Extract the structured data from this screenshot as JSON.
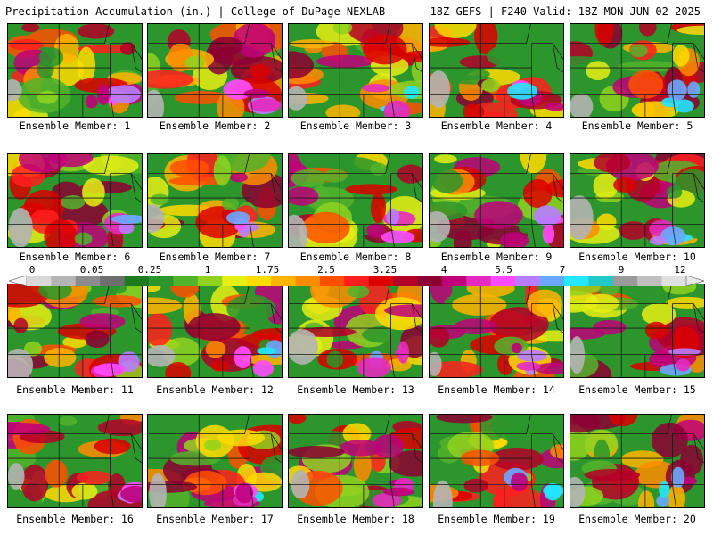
{
  "header": {
    "title": "Precipitation Accumulation (in.) | College of DuPage NEXLAB",
    "valid": "18Z GEFS | F240 Valid: 18Z MON JUN 02 2025"
  },
  "colors": {
    "levels": [
      "#d8d8d8",
      "#b4b4b4",
      "#8c8c8c",
      "#6e6e6e",
      "#1d7a1d",
      "#2c962c",
      "#52b32c",
      "#8fd21e",
      "#e6ef14",
      "#ffdc00",
      "#ffb400",
      "#ff8c00",
      "#ff5000",
      "#ff1e1e",
      "#dc0000",
      "#b40028",
      "#8c0032",
      "#c0007a",
      "#e62abf",
      "#ff4bff",
      "#b87cff",
      "#6aa8ff",
      "#24e6ff",
      "#20c8c8",
      "#9a9a9a",
      "#bfbfbf",
      "#e0e0e0"
    ]
  },
  "colorbar": {
    "labels": [
      "0",
      "0.05",
      "0.25",
      "1",
      "1.75",
      "2.5",
      "3.25",
      "4",
      "5.5",
      "7",
      "9",
      "12"
    ]
  },
  "panels": [
    {
      "label": "Ensemble Member: 1"
    },
    {
      "label": "Ensemble Member: 2"
    },
    {
      "label": "Ensemble Member: 3"
    },
    {
      "label": "Ensemble Member: 4"
    },
    {
      "label": "Ensemble Member: 5"
    },
    {
      "label": "Ensemble Member: 6"
    },
    {
      "label": "Ensemble Member: 7"
    },
    {
      "label": "Ensemble Member: 8"
    },
    {
      "label": "Ensemble Member: 9"
    },
    {
      "label": "Ensemble Member: 10"
    },
    {
      "label": "Ensemble Member: 11"
    },
    {
      "label": "Ensemble Member: 12"
    },
    {
      "label": "Ensemble Member: 13"
    },
    {
      "label": "Ensemble Member: 14"
    },
    {
      "label": "Ensemble Member: 15"
    },
    {
      "label": "Ensemble Member: 16"
    },
    {
      "label": "Ensemble Member: 17"
    },
    {
      "label": "Ensemble Member: 18"
    },
    {
      "label": "Ensemble Member: 19"
    },
    {
      "label": "Ensemble Member: 20"
    }
  ]
}
